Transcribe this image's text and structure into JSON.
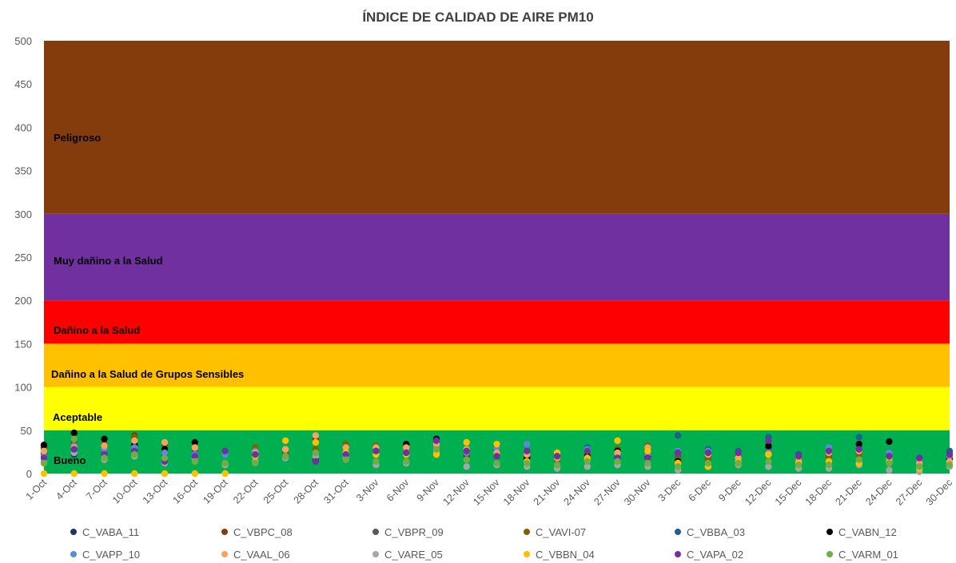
{
  "chart_data": {
    "type": "scatter",
    "title": "ÍNDICE DE CALIDAD DE AIRE PM10",
    "xlabel": "",
    "ylabel": "",
    "ylim": [
      0,
      500
    ],
    "yticks": [
      0,
      50,
      100,
      150,
      200,
      250,
      300,
      350,
      400,
      450,
      500
    ],
    "x_tick_labels": [
      "1-Oct",
      "4-Oct",
      "7-Oct",
      "10-Oct",
      "13-Oct",
      "16-Oct",
      "19-Oct",
      "22-Oct",
      "25-Oct",
      "28-Oct",
      "31-Oct",
      "3-Nov",
      "6-Nov",
      "9-Nov",
      "12-Nov",
      "15-Nov",
      "18-Nov",
      "21-Nov",
      "24-Nov",
      "27-Nov",
      "30-Nov",
      "3-Dec",
      "6-Dec",
      "9-Dec",
      "12-Dec",
      "15-Dec",
      "18-Dec",
      "21-Dec",
      "24-Dec",
      "27-Dec",
      "30-Dec"
    ],
    "bands": [
      {
        "label": "Bueno",
        "from": 0,
        "to": 50,
        "color": "#00b050"
      },
      {
        "label": "Aceptable",
        "from": 50,
        "to": 100,
        "color": "#ffff00"
      },
      {
        "label": "Dañino a la Salud de Grupos Sensibles",
        "from": 100,
        "to": 150,
        "color": "#ffc000"
      },
      {
        "label": "Dañino a la Salud",
        "from": 150,
        "to": 200,
        "color": "#ff0000"
      },
      {
        "label": "Muy dañino a la Salud",
        "from": 200,
        "to": 300,
        "color": "#7030a0"
      },
      {
        "label": "Peligroso",
        "from": 300,
        "to": 500,
        "color": "#843c0c"
      }
    ],
    "series": [
      {
        "name": "C_VABA_11",
        "color": "#203864",
        "values": [
          30,
          22,
          26,
          28,
          18,
          20,
          null,
          null,
          24,
          16,
          null,
          28,
          30,
          34,
          22,
          26,
          20,
          null,
          18,
          20,
          22,
          16,
          null,
          null,
          30,
          null,
          22,
          24,
          null,
          12,
          20
        ]
      },
      {
        "name": "C_VBPC_08",
        "color": "#843c0c",
        "values": [
          24,
          36,
          30,
          44,
          34,
          30,
          null,
          null,
          null,
          40,
          null,
          null,
          28,
          null,
          20,
          null,
          16,
          null,
          14,
          null,
          20,
          null,
          null,
          null,
          26,
          null,
          20,
          null,
          null,
          null,
          18
        ]
      },
      {
        "name": "C_VBPR_09",
        "color": "#595959",
        "values": [
          30,
          38,
          32,
          34,
          26,
          30,
          null,
          24,
          22,
          26,
          24,
          28,
          30,
          36,
          24,
          30,
          24,
          18,
          20,
          24,
          24,
          20,
          18,
          22,
          28,
          18,
          22,
          28,
          22,
          14,
          24
        ]
      },
      {
        "name": "C_VAVI-07",
        "color": "#7f6000",
        "values": [
          28,
          36,
          34,
          42,
          24,
          28,
          null,
          30,
          26,
          28,
          34,
          32,
          30,
          32,
          26,
          28,
          22,
          16,
          22,
          28,
          32,
          16,
          16,
          18,
          24,
          16,
          20,
          22,
          20,
          12,
          18
        ]
      },
      {
        "name": "C_VBBA_03",
        "color": "#1f5f8b",
        "values": [
          22,
          30,
          26,
          32,
          22,
          24,
          null,
          null,
          28,
          24,
          null,
          30,
          28,
          38,
          24,
          26,
          24,
          null,
          30,
          26,
          28,
          44,
          28,
          26,
          42,
          22,
          24,
          42,
          24,
          18,
          26
        ]
      },
      {
        "name": "C_VABN_12",
        "color": "#000000",
        "values": [
          33,
          47,
          40,
          33,
          28,
          36,
          null,
          null,
          null,
          null,
          null,
          null,
          34,
          40,
          null,
          32,
          18,
          null,
          20,
          26,
          20,
          14,
          null,
          null,
          32,
          null,
          null,
          34,
          37,
          null,
          16
        ]
      },
      {
        "name": "C_VAPP_10",
        "color": "#5b8bd6",
        "values": [
          20,
          32,
          28,
          30,
          24,
          22,
          22,
          26,
          28,
          24,
          20,
          26,
          26,
          32,
          24,
          30,
          34,
          20,
          28,
          22,
          22,
          26,
          26,
          24,
          24,
          18,
          30,
          26,
          24,
          16,
          20
        ]
      },
      {
        "name": "C_VAAL_06",
        "color": "#f4a460",
        "values": [
          26,
          30,
          32,
          38,
          36,
          30,
          null,
          24,
          28,
          44,
          30,
          30,
          30,
          34,
          28,
          24,
          22,
          18,
          16,
          24,
          30,
          12,
          22,
          18,
          22,
          14,
          24,
          26,
          18,
          12,
          14
        ]
      },
      {
        "name": "C_VARE_05",
        "color": "#a6a6a6",
        "values": [
          14,
          24,
          16,
          20,
          12,
          18,
          10,
          14,
          18,
          20,
          18,
          10,
          12,
          24,
          8,
          10,
          8,
          6,
          8,
          10,
          8,
          4,
          8,
          10,
          8,
          6,
          6,
          10,
          4,
          2,
          8
        ]
      },
      {
        "name": "C_VBBN_04",
        "color": "#ffc000",
        "values": [
          0,
          0,
          0,
          0,
          0,
          0,
          0,
          20,
          38,
          36,
          24,
          22,
          22,
          22,
          36,
          34,
          14,
          24,
          18,
          38,
          26,
          12,
          8,
          14,
          22,
          12,
          14,
          12,
          14,
          6,
          10
        ]
      },
      {
        "name": "C_VAPA_02",
        "color": "#7030a0",
        "values": [
          18,
          28,
          22,
          26,
          14,
          20,
          26,
          22,
          20,
          14,
          22,
          26,
          24,
          38,
          26,
          20,
          26,
          20,
          26,
          18,
          18,
          24,
          24,
          24,
          38,
          20,
          26,
          28,
          20,
          18,
          22
        ]
      },
      {
        "name": "C_VARM_01",
        "color": "#70ad47",
        "values": [
          12,
          40,
          18,
          22,
          18,
          14,
          12,
          12,
          20,
          24,
          16,
          14,
          14,
          28,
          16,
          12,
          12,
          10,
          14,
          14,
          12,
          8,
          12,
          12,
          14,
          10,
          10,
          16,
          12,
          8,
          10
        ]
      }
    ],
    "legend_position": "bottom"
  }
}
